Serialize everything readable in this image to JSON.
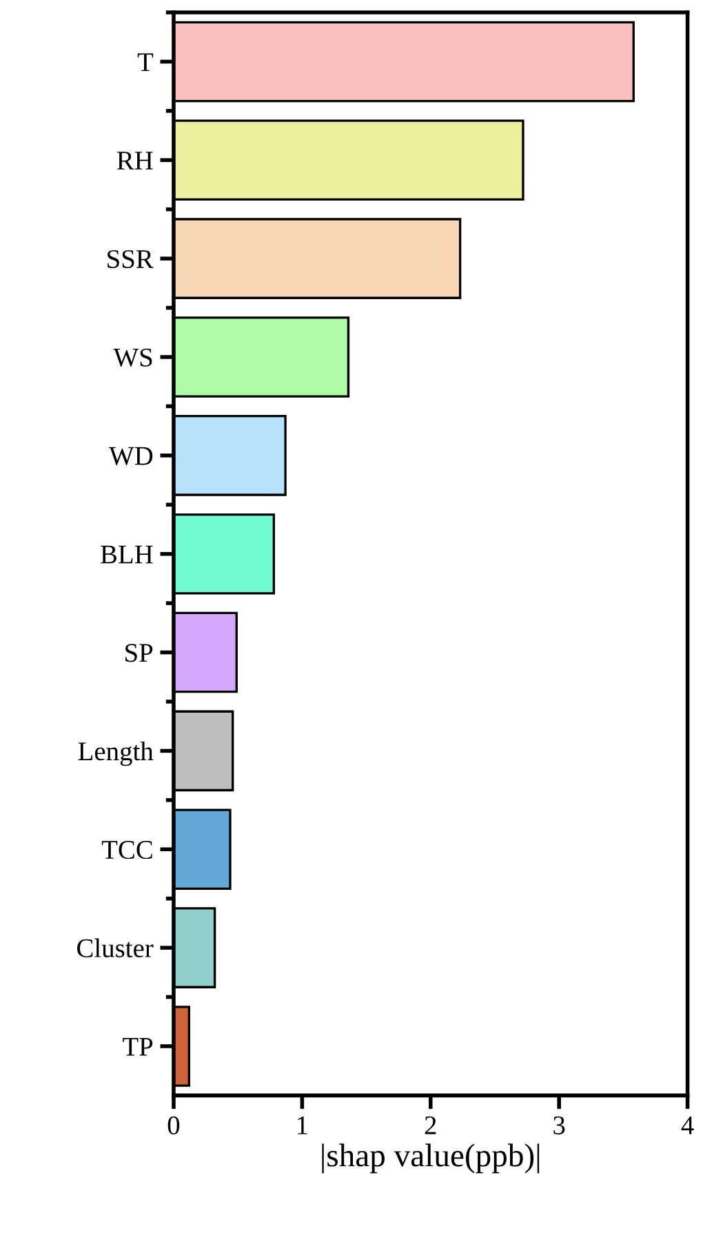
{
  "chart_data": {
    "type": "bar",
    "orientation": "horizontal",
    "xlabel": "|shap value(ppb)|",
    "categories": [
      "T",
      "RH",
      "SSR",
      "WS",
      "WD",
      "BLH",
      "SP",
      "Length",
      "TCC",
      "Cluster",
      "TP"
    ],
    "values": [
      3.58,
      2.72,
      2.23,
      1.36,
      0.87,
      0.78,
      0.49,
      0.46,
      0.44,
      0.32,
      0.12
    ],
    "colors": [
      "#fbbfbf",
      "#eeee9f",
      "#f8d5b5",
      "#aefca5",
      "#b8e2fc",
      "#72fbd0",
      "#d6a8fd",
      "#bdbdbd",
      "#62a7d6",
      "#90cfcb",
      "#d0623a"
    ],
    "xlim": [
      0,
      4
    ],
    "xticks": [
      0,
      1,
      2,
      3,
      4
    ],
    "grid": false,
    "legend": false
  }
}
